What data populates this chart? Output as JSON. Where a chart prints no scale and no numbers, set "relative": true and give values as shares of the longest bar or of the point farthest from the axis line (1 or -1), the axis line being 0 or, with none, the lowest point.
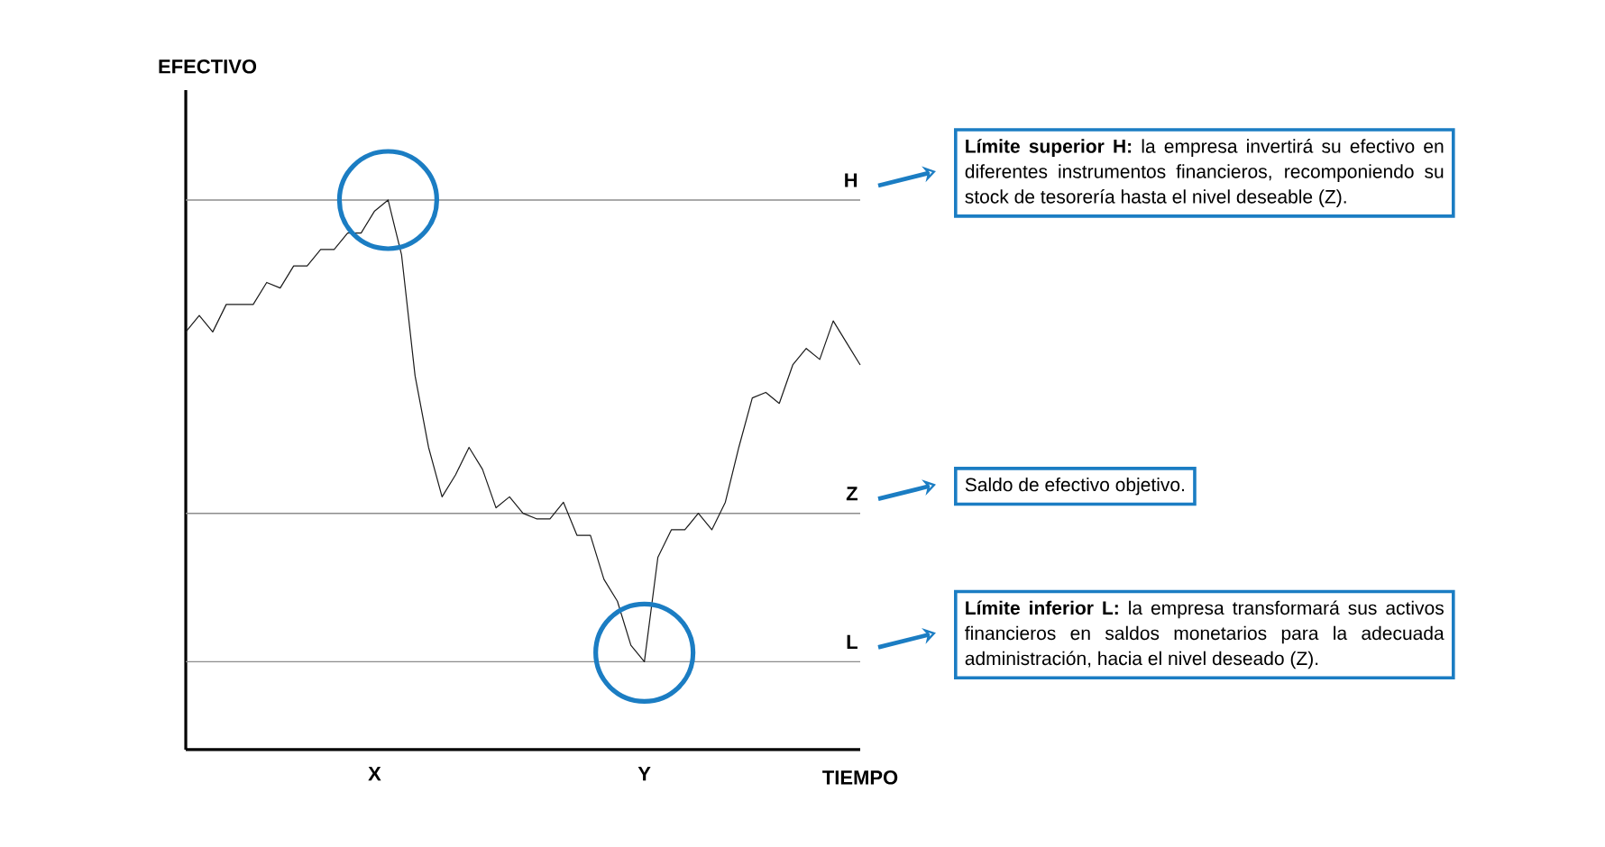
{
  "chart_data": {
    "type": "line",
    "relative": true,
    "xlabel": "TIEMPO",
    "color": "#1a1a1a",
    "tick_labels": "x",
    "categories": [
      null,
      null,
      null,
      null,
      null,
      null,
      null,
      null,
      null,
      null,
      null,
      null,
      null,
      null,
      "X",
      null,
      null,
      null,
      null,
      null,
      null,
      null,
      null,
      null,
      null,
      null,
      null,
      null,
      null,
      null,
      null,
      null,
      null,
      null,
      "Y",
      null,
      null,
      null,
      null,
      null,
      null,
      null,
      null,
      null,
      null,
      null,
      null,
      null,
      null,
      null,
      null
    ],
    "values": [
      0.76,
      0.79,
      0.76,
      0.81,
      0.81,
      0.81,
      0.85,
      0.84,
      0.88,
      0.88,
      0.91,
      0.91,
      0.94,
      0.94,
      0.98,
      1.0,
      0.9,
      0.68,
      0.55,
      0.46,
      0.5,
      0.55,
      0.51,
      0.44,
      0.46,
      0.43,
      0.42,
      0.42,
      0.45,
      0.39,
      0.39,
      0.31,
      0.27,
      0.19,
      0.16,
      0.35,
      0.4,
      0.4,
      0.43,
      0.4,
      0.45,
      0.55,
      0.64,
      0.65,
      0.63,
      0.7,
      0.73,
      0.71,
      0.78,
      0.74,
      0.7
    ],
    "ref_lines": [
      {
        "axis": "y",
        "value": 1.0,
        "label": "H",
        "color": "#8c8c8c"
      },
      {
        "axis": "y",
        "value": 0.43,
        "label": "Z",
        "color": "#8c8c8c"
      },
      {
        "axis": "y",
        "value": 0.16,
        "label": "L",
        "color": "#8c8c8c"
      }
    ],
    "annotations": [
      "**Límite superior H:** la empresa invertirá su efectivo en diferentes instrumentos financieros, recomponiendo su stock de tesorería hasta el nivel deseable (Z).",
      "Saldo de efectivo objetivo.",
      "**Límite inferior L:** la empresa transformará sus activos financieros en saldos monetarios para la adecuada administración, hacia el nivel deseado (Z).",
      "EFECTIVO"
    ]
  }
}
